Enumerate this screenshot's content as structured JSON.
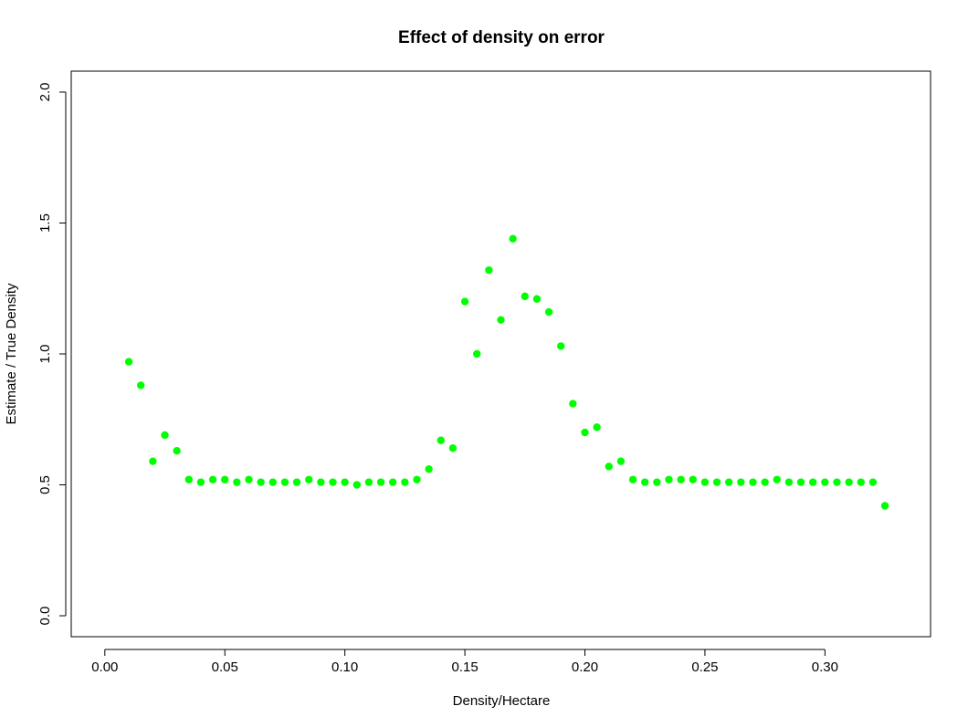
{
  "chart_data": {
    "type": "scatter",
    "title": "Effect of density on error",
    "xlabel": "Density/Hectare",
    "ylabel": "Estimate / True Density",
    "xlim": [
      -0.014,
      0.344
    ],
    "ylim": [
      -0.08,
      2.08
    ],
    "xticks": [
      0.0,
      0.05,
      0.1,
      0.15,
      0.2,
      0.25,
      0.3
    ],
    "xtick_labels": [
      "0.00",
      "0.05",
      "0.10",
      "0.15",
      "0.20",
      "0.25",
      "0.30"
    ],
    "yticks": [
      0.0,
      0.5,
      1.0,
      1.5,
      2.0
    ],
    "ytick_labels": [
      "0.0",
      "0.5",
      "1.0",
      "1.5",
      "2.0"
    ],
    "grid": false,
    "point_color": "#00ff00",
    "series": [
      {
        "points": [
          [
            0.01,
            0.97
          ],
          [
            0.015,
            0.88
          ],
          [
            0.02,
            0.59
          ],
          [
            0.025,
            0.69
          ],
          [
            0.03,
            0.63
          ],
          [
            0.035,
            0.52
          ],
          [
            0.04,
            0.51
          ],
          [
            0.045,
            0.52
          ],
          [
            0.05,
            0.52
          ],
          [
            0.055,
            0.51
          ],
          [
            0.06,
            0.52
          ],
          [
            0.065,
            0.51
          ],
          [
            0.07,
            0.51
          ],
          [
            0.075,
            0.51
          ],
          [
            0.08,
            0.51
          ],
          [
            0.085,
            0.52
          ],
          [
            0.09,
            0.51
          ],
          [
            0.095,
            0.51
          ],
          [
            0.1,
            0.51
          ],
          [
            0.105,
            0.5
          ],
          [
            0.11,
            0.51
          ],
          [
            0.115,
            0.51
          ],
          [
            0.12,
            0.51
          ],
          [
            0.125,
            0.51
          ],
          [
            0.13,
            0.52
          ],
          [
            0.135,
            0.56
          ],
          [
            0.14,
            0.67
          ],
          [
            0.145,
            0.64
          ],
          [
            0.15,
            1.2
          ],
          [
            0.155,
            1.0
          ],
          [
            0.16,
            1.32
          ],
          [
            0.165,
            1.13
          ],
          [
            0.17,
            1.44
          ],
          [
            0.175,
            1.22
          ],
          [
            0.18,
            1.21
          ],
          [
            0.185,
            1.16
          ],
          [
            0.19,
            1.03
          ],
          [
            0.195,
            0.81
          ],
          [
            0.2,
            0.7
          ],
          [
            0.205,
            0.72
          ],
          [
            0.21,
            0.57
          ],
          [
            0.215,
            0.59
          ],
          [
            0.22,
            0.52
          ],
          [
            0.225,
            0.51
          ],
          [
            0.23,
            0.51
          ],
          [
            0.235,
            0.52
          ],
          [
            0.24,
            0.52
          ],
          [
            0.245,
            0.52
          ],
          [
            0.25,
            0.51
          ],
          [
            0.255,
            0.51
          ],
          [
            0.26,
            0.51
          ],
          [
            0.265,
            0.51
          ],
          [
            0.27,
            0.51
          ],
          [
            0.275,
            0.51
          ],
          [
            0.28,
            0.52
          ],
          [
            0.285,
            0.51
          ],
          [
            0.29,
            0.51
          ],
          [
            0.295,
            0.51
          ],
          [
            0.3,
            0.51
          ],
          [
            0.305,
            0.51
          ],
          [
            0.31,
            0.51
          ],
          [
            0.315,
            0.51
          ],
          [
            0.32,
            0.51
          ],
          [
            0.325,
            0.42
          ]
        ]
      }
    ]
  }
}
